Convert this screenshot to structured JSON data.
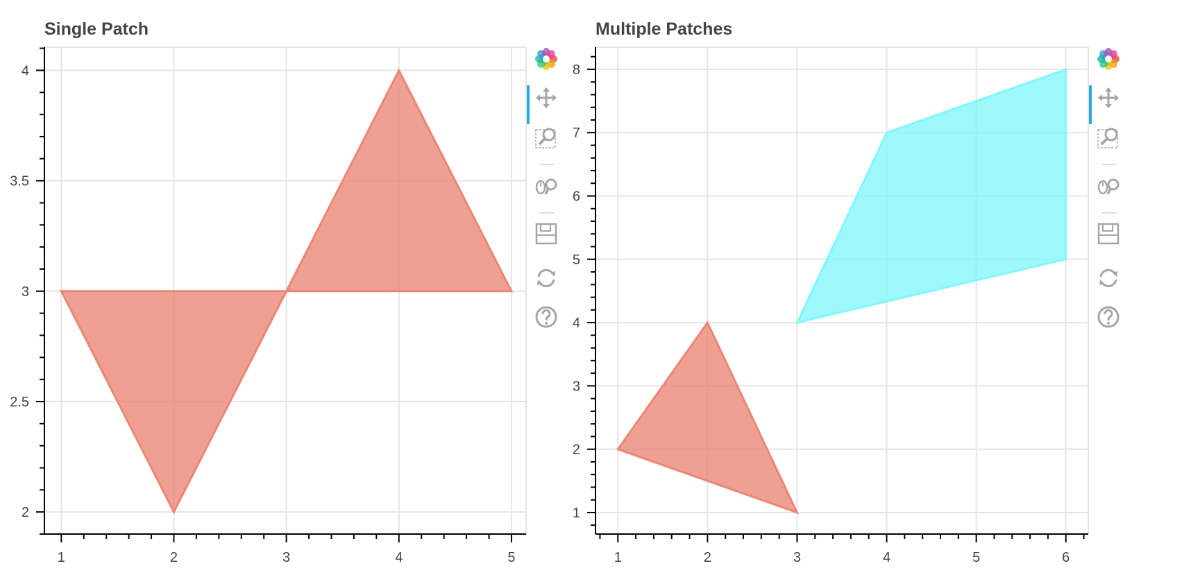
{
  "chart_data": [
    {
      "type": "area",
      "title": "Single Patch",
      "xlim": [
        0.85,
        5.13
      ],
      "ylim": [
        1.9,
        4.105
      ],
      "x_ticks": [
        1,
        2,
        3,
        4,
        5
      ],
      "y_ticks": [
        2,
        2.5,
        3,
        3.5,
        4
      ],
      "grid": true,
      "series": [
        {
          "x": [
            1,
            2,
            3,
            4,
            5
          ],
          "y": [
            3,
            2,
            3,
            4,
            3
          ],
          "color": "#e9806e",
          "alpha": 0.75
        }
      ]
    },
    {
      "type": "area",
      "title": "Multiple Patches",
      "xlim": [
        0.75,
        6.25
      ],
      "ylim": [
        0.66,
        8.35
      ],
      "x_ticks": [
        1,
        2,
        3,
        4,
        5,
        6
      ],
      "y_ticks": [
        1,
        2,
        3,
        4,
        5,
        6,
        7,
        8
      ],
      "grid": true,
      "series": [
        {
          "x": [
            1,
            2,
            3
          ],
          "y": [
            2,
            4,
            1
          ],
          "color": "#e9806e",
          "alpha": 0.75
        },
        {
          "x": [
            3,
            4,
            6,
            6
          ],
          "y": [
            4,
            7,
            8,
            5
          ],
          "color": "#7cf7f9",
          "alpha": 0.75
        }
      ]
    }
  ],
  "toolbar": {
    "tools": [
      {
        "icon": "bokeh-logo-icon",
        "active": false
      },
      {
        "icon": "pan-icon",
        "active": true
      },
      {
        "icon": "box-zoom-icon",
        "active": false
      },
      {
        "icon": "separator",
        "active": false
      },
      {
        "icon": "wheel-zoom-icon",
        "active": false
      },
      {
        "icon": "separator",
        "active": false
      },
      {
        "icon": "save-icon",
        "active": false
      },
      {
        "icon": "reset-icon",
        "active": false
      },
      {
        "icon": "help-icon",
        "active": false
      }
    ]
  },
  "colors": {
    "grid": "#e5e5e5",
    "axis": "#000000",
    "tick_label": "#444444",
    "tool_icon": "#a5a5a5",
    "active_indicator": "#26aae1"
  }
}
